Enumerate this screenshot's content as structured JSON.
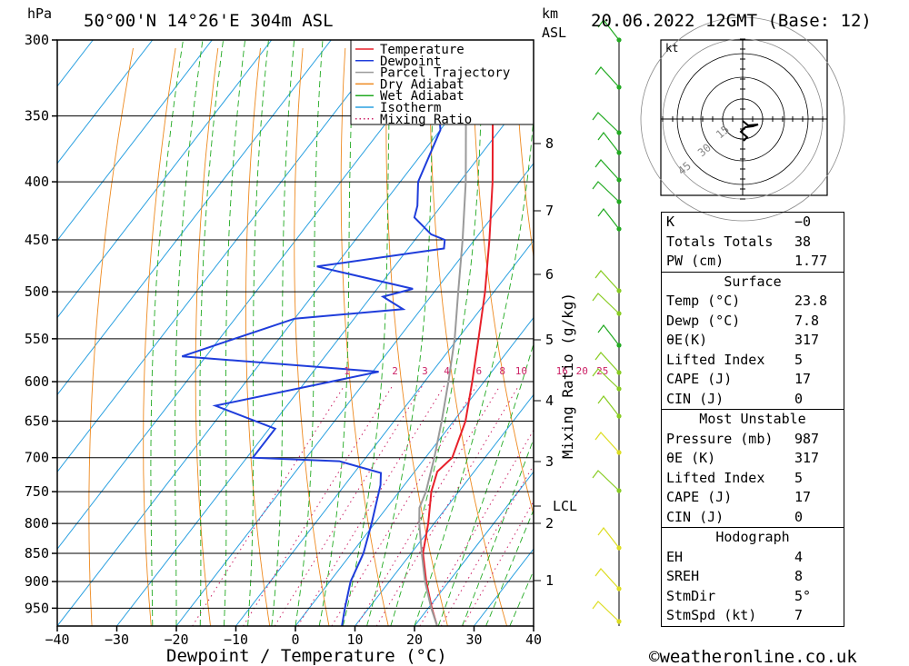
{
  "header": {
    "hpa_label": "hPa",
    "location": "50°00'N 14°26'E 304m ASL",
    "km_label": "km",
    "asl_label": "ASL",
    "datetime": "20.06.2022 12GMT (Base: 12)"
  },
  "chart_data": {
    "type": "line",
    "title": "50°00'N 14°26'E 304m ASL",
    "xlabel": "Dewpoint / Temperature (°C)",
    "ylabel": "hPa",
    "xlim": [
      -40,
      40
    ],
    "ylim": [
      985,
      300
    ],
    "x_ticks": [
      "−40",
      "−30",
      "−20",
      "−10",
      "0",
      "10",
      "20",
      "30",
      "40"
    ],
    "pressure_ticks": [
      "300",
      "350",
      "400",
      "450",
      "500",
      "550",
      "600",
      "650",
      "700",
      "750",
      "800",
      "850",
      "900",
      "950"
    ],
    "km_ticks": [
      "8",
      "7",
      "6",
      "5",
      "4",
      "3",
      "2",
      "1"
    ],
    "lcl_label": "LCL",
    "mixing_ratio_axis_label": "Mixing Ratio (g/kg)",
    "mixing_ratio_labels": [
      "1",
      "2",
      "3",
      "4",
      "6",
      "8",
      "10",
      "16",
      "20",
      "25"
    ],
    "legend": [
      {
        "name": "Temperature",
        "color": "#e8202a",
        "style": "solid"
      },
      {
        "name": "Dewpoint",
        "color": "#1f3ddb",
        "style": "solid"
      },
      {
        "name": "Parcel Trajectory",
        "color": "#9a9a9a",
        "style": "solid"
      },
      {
        "name": "Dry Adiabat",
        "color": "#ee8a20",
        "style": "solid"
      },
      {
        "name": "Wet Adiabat",
        "color": "#22aa22",
        "style": "solid"
      },
      {
        "name": "Isotherm",
        "color": "#2aa0e0",
        "style": "solid"
      },
      {
        "name": "Mixing Ratio",
        "color": "#cc2266",
        "style": "dotted"
      }
    ],
    "series": [
      {
        "name": "Temperature",
        "color": "#e8202a",
        "points": [
          [
            985,
            23.8
          ],
          [
            950,
            20.6
          ],
          [
            900,
            16.2
          ],
          [
            850,
            12.0
          ],
          [
            800,
            9.0
          ],
          [
            750,
            5.4
          ],
          [
            720,
            3.8
          ],
          [
            700,
            4.5
          ],
          [
            650,
            2.0
          ],
          [
            600,
            -2.0
          ],
          [
            550,
            -6.5
          ],
          [
            500,
            -11.5
          ],
          [
            450,
            -17.5
          ],
          [
            400,
            -24.5
          ],
          [
            350,
            -33.0
          ],
          [
            300,
            -42.0
          ]
        ]
      },
      {
        "name": "Dewpoint",
        "color": "#1f3ddb",
        "points": [
          [
            985,
            7.8
          ],
          [
            950,
            6.0
          ],
          [
            900,
            3.5
          ],
          [
            850,
            2.0
          ],
          [
            800,
            -0.5
          ],
          [
            740,
            -4.0
          ],
          [
            722,
            -5.5
          ],
          [
            705,
            -14.0
          ],
          [
            700,
            -29.0
          ],
          [
            660,
            -29.0
          ],
          [
            630,
            -42.0
          ],
          [
            588,
            -19.0
          ],
          [
            570,
            -54.0
          ],
          [
            528,
            -40.0
          ],
          [
            518,
            -23.0
          ],
          [
            505,
            -28.0
          ],
          [
            497,
            -24.0
          ],
          [
            475,
            -43.0
          ],
          [
            458,
            -24.0
          ],
          [
            450,
            -25.0
          ],
          [
            445,
            -28.0
          ],
          [
            430,
            -33.0
          ],
          [
            420,
            -34.0
          ],
          [
            400,
            -37.0
          ],
          [
            360,
            -40.0
          ],
          [
            340,
            -44.0
          ],
          [
            330,
            -52.0
          ],
          [
            300,
            -57.5
          ]
        ]
      },
      {
        "name": "Parcel Trajectory",
        "color": "#9a9a9a",
        "points": [
          [
            985,
            23.8
          ],
          [
            950,
            20.5
          ],
          [
            900,
            16.0
          ],
          [
            850,
            11.8
          ],
          [
            800,
            7.5
          ],
          [
            775,
            5.5
          ],
          [
            750,
            4.5
          ],
          [
            700,
            1.5
          ],
          [
            650,
            -2.0
          ],
          [
            600,
            -6.0
          ],
          [
            550,
            -10.5
          ],
          [
            500,
            -16.0
          ],
          [
            450,
            -22.0
          ],
          [
            400,
            -29.0
          ],
          [
            350,
            -37.5
          ],
          [
            300,
            -47.0
          ]
        ]
      }
    ]
  },
  "hodograph": {
    "unit": "kt",
    "ring_labels": [
      "15",
      "30",
      "45"
    ]
  },
  "indices": {
    "general": [
      {
        "label": "K",
        "value": "−0"
      },
      {
        "label": "Totals Totals",
        "value": "38"
      },
      {
        "label": "PW (cm)",
        "value": "1.77"
      }
    ],
    "surface_title": "Surface",
    "surface": [
      {
        "label": "Temp (°C)",
        "value": "23.8"
      },
      {
        "label": "Dewp (°C)",
        "value": "7.8"
      },
      {
        "label": "θE(K)",
        "value": "317"
      },
      {
        "label": "Lifted Index",
        "value": "5"
      },
      {
        "label": "CAPE (J)",
        "value": "17"
      },
      {
        "label": "CIN (J)",
        "value": "0"
      }
    ],
    "mu_title": "Most Unstable",
    "most_unstable": [
      {
        "label": "Pressure (mb)",
        "value": "987"
      },
      {
        "label": "θE (K)",
        "value": "317"
      },
      {
        "label": "Lifted Index",
        "value": "5"
      },
      {
        "label": "CAPE (J)",
        "value": "17"
      },
      {
        "label": "CIN (J)",
        "value": "0"
      }
    ],
    "hodo_title": "Hodograph",
    "hodo": [
      {
        "label": "EH",
        "value": "4"
      },
      {
        "label": "SREH",
        "value": "8"
      },
      {
        "label": "StmDir",
        "value": "5°"
      },
      {
        "label": "StmSpd (kt)",
        "value": "7"
      }
    ]
  },
  "footer": {
    "credit": "©weatheronline.co.uk"
  }
}
